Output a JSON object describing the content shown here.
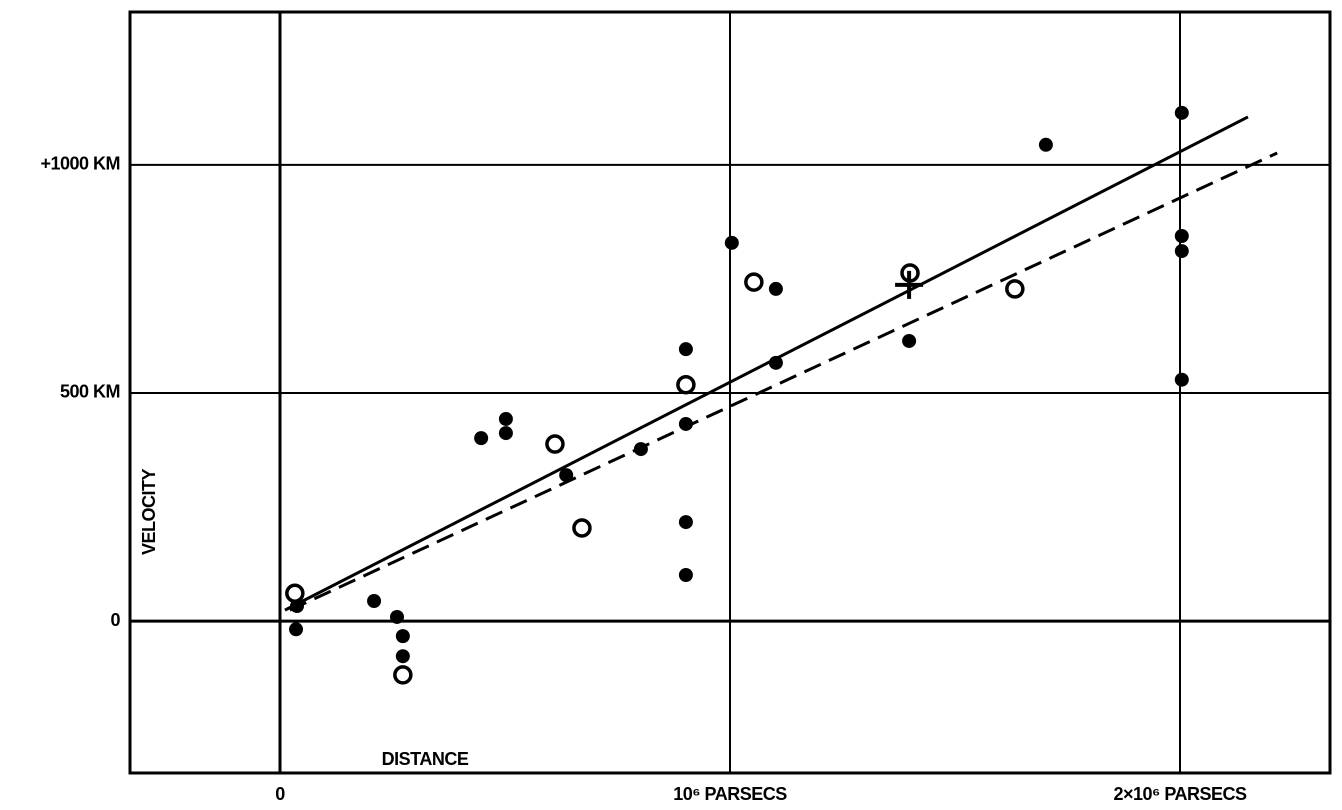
{
  "chart_data": {
    "type": "scatter",
    "xlabel": "DISTANCE",
    "ylabel": "VELOCITY",
    "xlim": [
      -333333,
      2333333
    ],
    "ylim": [
      -333,
      1335
    ],
    "xticks": [
      0,
      {
        "value": 1000000,
        "label": "10⁶ PARSECS"
      },
      {
        "value": 2000000,
        "label": "2×10⁶ PARSECS"
      }
    ],
    "yticks": [
      {
        "value": 0,
        "label": "0"
      },
      {
        "value": 500,
        "label": "500 KM"
      },
      {
        "value": 1000,
        "label": "+1000 KM"
      }
    ],
    "grid": true,
    "series": [
      {
        "marker": "filled",
        "color": "#000000",
        "x": [
          35600,
          37800,
          209000,
          260000,
          273000,
          273000,
          447000,
          502000,
          502000,
          636000,
          802000,
          902000,
          902000,
          902000,
          902000,
          1004000,
          1102000,
          1102000,
          1398000,
          1702000,
          2004000,
          2004000,
          2004000,
          2004000
        ],
        "values": [
          -18,
          33,
          44,
          9,
          -33,
          -77,
          401,
          443,
          412,
          320,
          377,
          596,
          432,
          217,
          101,
          829,
          728,
          566,
          614,
          1044,
          1114,
          844,
          811,
          529
        ]
      },
      {
        "marker": "open",
        "color": "#000000",
        "x": [
          33000,
          273000,
          611000,
          671000,
          902000,
          1053000,
          1400000,
          1633000
        ],
        "values": [
          61,
          -118,
          388,
          204,
          518,
          743,
          763,
          728
        ]
      },
      {
        "marker": "cross",
        "color": "#000000",
        "x": [
          1398000
        ],
        "values": [
          737
        ]
      }
    ],
    "lines": [
      {
        "style": "solid",
        "color": "#000000",
        "x": [
          11000,
          2151000
        ],
        "values": [
          24,
          1105
        ]
      },
      {
        "style": "dashed",
        "color": "#000000",
        "x": [
          22000,
          2216000
        ],
        "values": [
          24,
          1026
        ]
      }
    ]
  }
}
